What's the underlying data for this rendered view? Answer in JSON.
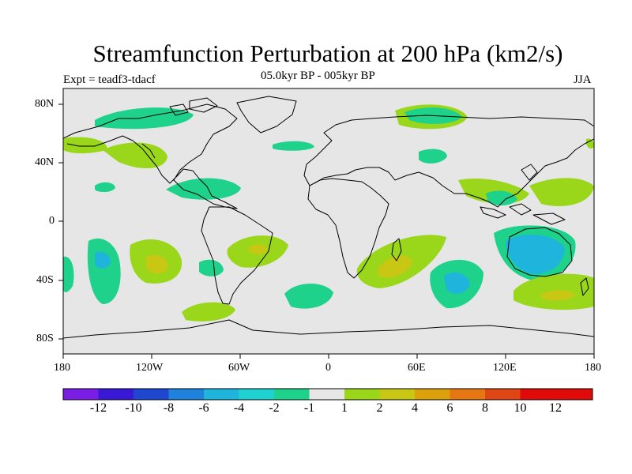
{
  "title": "Streamfunction Perturbation at 200 hPa (km2/s)",
  "subtitle": "05.0kyr BP - 005kyr BP",
  "left_label": "Expt = teadf3-tdacf",
  "right_label": "JJA",
  "axes": {
    "y_ticks": [
      "80N",
      "40N",
      "0",
      "40S",
      "80S"
    ],
    "x_ticks": [
      "180",
      "120W",
      "60W",
      "0",
      "60E",
      "120E",
      "180"
    ]
  },
  "colorbar": {
    "labels": [
      "-12",
      "-10",
      "-8",
      "-6",
      "-4",
      "-2",
      "-1",
      "1",
      "2",
      "4",
      "6",
      "8",
      "10",
      "12"
    ],
    "colors": [
      "#7a1ee6",
      "#3a18d8",
      "#1e46d0",
      "#1e82dc",
      "#1eb4dc",
      "#1ed2d2",
      "#1ed28c",
      "#e6e6e6",
      "#9ad61a",
      "#c8c814",
      "#dca00a",
      "#e67814",
      "#e04614",
      "#e00a0a"
    ]
  },
  "legend_colors": {
    "background": "#e6e6e6",
    "coast": "#000000"
  }
}
